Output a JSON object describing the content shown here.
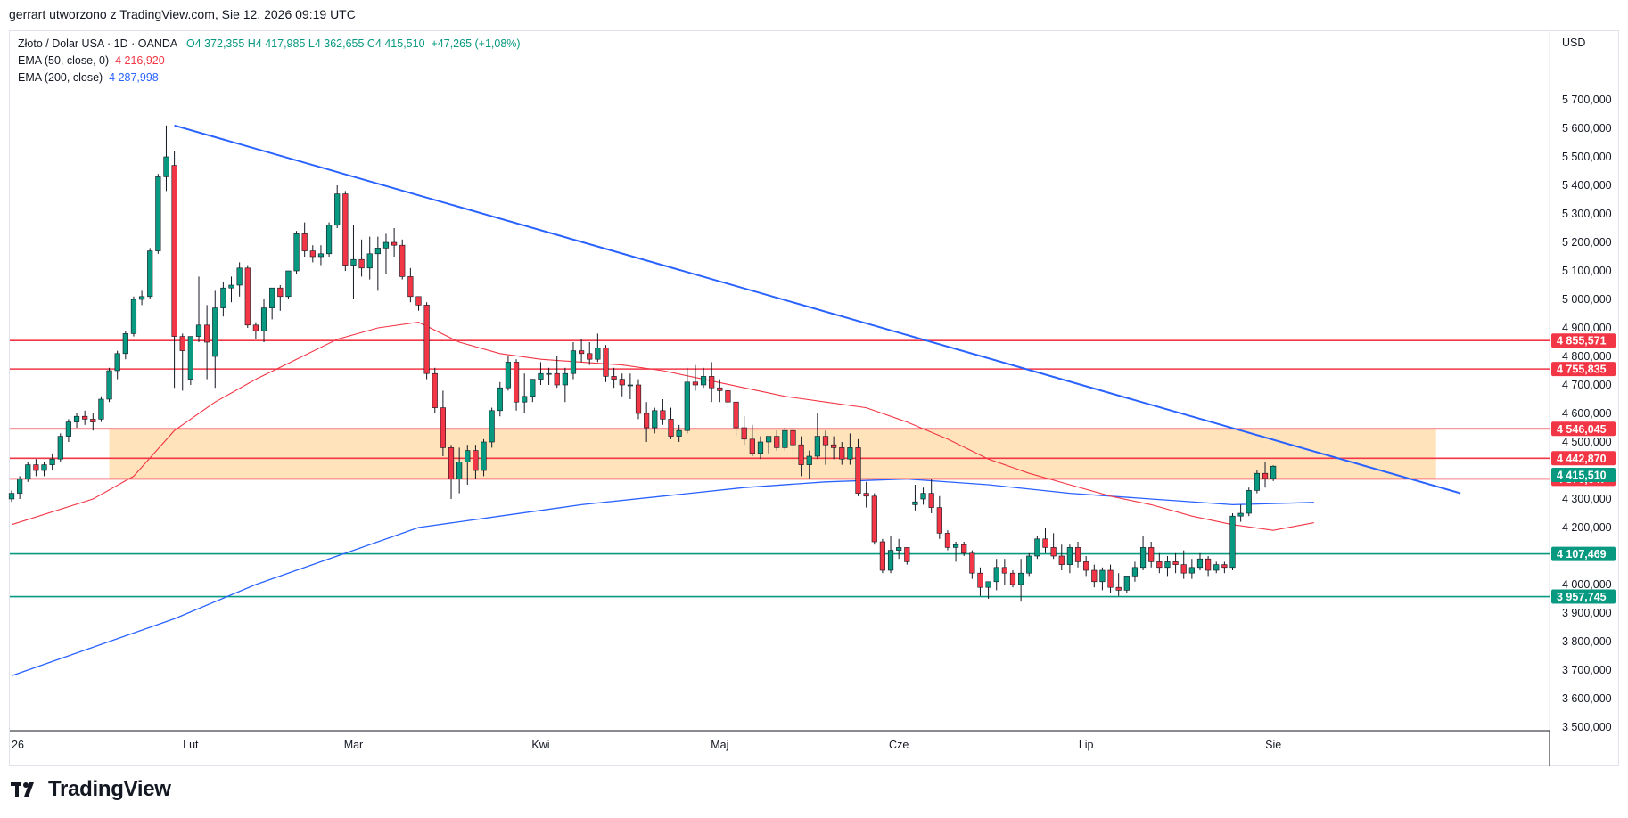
{
  "header": {
    "title": "gerrart utworzono z TradingView.com, Sie 12, 2026 09:19 UTC"
  },
  "legend": {
    "symbol": "Złoto / Dolar USA · 1D · OANDA",
    "ohlc": "O4 372,355  H4 417,985  L4 362,655  C4 415,510",
    "change": "+47,265 (+1,08%)",
    "ema50_label": "EMA (50, close, 0)",
    "ema50_value": "4 216,920",
    "ema200_label": "EMA (200, close)",
    "ema200_value": "4 287,998"
  },
  "footer": {
    "brand": "TradingView"
  },
  "colors": {
    "up": "#089981",
    "down": "#f23645",
    "ema50": "#f23645",
    "ema200": "#2962ff",
    "trendline": "#2962ff",
    "resistance": "#f23645",
    "support": "#089981",
    "zone": "#ffe0b2"
  },
  "chart_data": {
    "type": "candlestick",
    "currency": "USD",
    "ylim": [
      3500,
      5800
    ],
    "y_ticks": [
      {
        "v": 5700,
        "label": "5 700,000"
      },
      {
        "v": 5600,
        "label": "5 600,000"
      },
      {
        "v": 5500,
        "label": "5 500,000"
      },
      {
        "v": 5400,
        "label": "5 400,000"
      },
      {
        "v": 5300,
        "label": "5 300,000"
      },
      {
        "v": 5200,
        "label": "5 200,000"
      },
      {
        "v": 5100,
        "label": "5 100,000"
      },
      {
        "v": 5000,
        "label": "5 000,000"
      },
      {
        "v": 4900,
        "label": "4 900,000"
      },
      {
        "v": 4800,
        "label": "4 800,000"
      },
      {
        "v": 4700,
        "label": "4 700,000"
      },
      {
        "v": 4600,
        "label": "4 600,000"
      },
      {
        "v": 4500,
        "label": "4 500,000"
      },
      {
        "v": 4300,
        "label": "4 300,000"
      },
      {
        "v": 4200,
        "label": "4 200,000"
      },
      {
        "v": 4000,
        "label": "4 000,000"
      },
      {
        "v": 3900,
        "label": "3 900,000"
      },
      {
        "v": 3800,
        "label": "3 800,000"
      },
      {
        "v": 3700,
        "label": "3 700,000"
      },
      {
        "v": 3600,
        "label": "3 600,000"
      },
      {
        "v": 3500,
        "label": "3 500,000"
      }
    ],
    "x_ticks": [
      {
        "i": 0,
        "label": "26"
      },
      {
        "i": 22,
        "label": "Lut"
      },
      {
        "i": 42,
        "label": "Mar"
      },
      {
        "i": 65,
        "label": "Kwi"
      },
      {
        "i": 87,
        "label": "Maj"
      },
      {
        "i": 109,
        "label": "Cze"
      },
      {
        "i": 132,
        "label": "Lip"
      },
      {
        "i": 155,
        "label": "Sie"
      }
    ],
    "price_levels": [
      {
        "v": 4855.571,
        "label": "4 855,571",
        "kind": "resistance"
      },
      {
        "v": 4755.835,
        "label": "4 755,835",
        "kind": "resistance"
      },
      {
        "v": 4546.045,
        "label": "4 546,045",
        "kind": "resistance"
      },
      {
        "v": 4442.87,
        "label": "4 442,870",
        "kind": "resistance"
      },
      {
        "v": 4370.647,
        "label": "4 370,647",
        "kind": "resistance"
      },
      {
        "v": 4107.469,
        "label": "4 107,469",
        "kind": "support"
      },
      {
        "v": 3957.745,
        "label": "3 957,745",
        "kind": "support"
      }
    ],
    "last_price": {
      "v": 4415.51,
      "label": "4 415,510"
    },
    "zone": {
      "from_i": 12,
      "to_i": 175,
      "low": 4370.647,
      "high": 4546.045
    },
    "trendline": {
      "from": {
        "i": 20,
        "v": 5610
      },
      "to": {
        "i": 178,
        "v": 4320
      }
    },
    "candles": [
      [
        4300,
        4330,
        4290,
        4320
      ],
      [
        4320,
        4380,
        4300,
        4370
      ],
      [
        4370,
        4430,
        4360,
        4420
      ],
      [
        4420,
        4440,
        4380,
        4400
      ],
      [
        4400,
        4430,
        4380,
        4420
      ],
      [
        4420,
        4460,
        4400,
        4440
      ],
      [
        4440,
        4530,
        4430,
        4520
      ],
      [
        4520,
        4580,
        4500,
        4570
      ],
      [
        4570,
        4600,
        4550,
        4590
      ],
      [
        4590,
        4610,
        4560,
        4580
      ],
      [
        4580,
        4600,
        4540,
        4570
      ],
      [
        4580,
        4660,
        4570,
        4650
      ],
      [
        4650,
        4760,
        4640,
        4750
      ],
      [
        4750,
        4820,
        4720,
        4810
      ],
      [
        4810,
        4890,
        4790,
        4880
      ],
      [
        4880,
        5010,
        4870,
        5000
      ],
      [
        5000,
        5030,
        4980,
        5010
      ],
      [
        5010,
        5180,
        5000,
        5170
      ],
      [
        5170,
        5440,
        5160,
        5430
      ],
      [
        5430,
        5610,
        5380,
        5500
      ],
      [
        5470,
        5520,
        4690,
        4870
      ],
      [
        4870,
        4880,
        4680,
        4820
      ],
      [
        4720,
        4870,
        4700,
        4870
      ],
      [
        4870,
        5080,
        4850,
        4910
      ],
      [
        4910,
        4980,
        4720,
        4850
      ],
      [
        4800,
        5030,
        4690,
        4970
      ],
      [
        4970,
        5060,
        4940,
        5040
      ],
      [
        5040,
        5080,
        4990,
        5050
      ],
      [
        5050,
        5130,
        5010,
        5110
      ],
      [
        5110,
        5120,
        4900,
        4910
      ],
      [
        4910,
        4920,
        4860,
        4890
      ],
      [
        4890,
        5000,
        4850,
        4970
      ],
      [
        4970,
        5030,
        4930,
        5040
      ],
      [
        5040,
        5050,
        4960,
        5010
      ],
      [
        5010,
        5100,
        5000,
        5100
      ],
      [
        5100,
        5240,
        5090,
        5230
      ],
      [
        5230,
        5270,
        5150,
        5170
      ],
      [
        5170,
        5190,
        5130,
        5150
      ],
      [
        5150,
        5190,
        5120,
        5160
      ],
      [
        5160,
        5270,
        5150,
        5260
      ],
      [
        5260,
        5400,
        5250,
        5370
      ],
      [
        5370,
        5380,
        5100,
        5120
      ],
      [
        5120,
        5260,
        5000,
        5140
      ],
      [
        5140,
        5210,
        5080,
        5110
      ],
      [
        5110,
        5220,
        5070,
        5160
      ],
      [
        5160,
        5220,
        5030,
        5180
      ],
      [
        5180,
        5230,
        5090,
        5200
      ],
      [
        5200,
        5250,
        5150,
        5190
      ],
      [
        5190,
        5210,
        5070,
        5080
      ],
      [
        5080,
        5110,
        4990,
        5010
      ],
      [
        5010,
        5010,
        4960,
        4980
      ],
      [
        4980,
        4990,
        4720,
        4740
      ],
      [
        4740,
        4760,
        4600,
        4620
      ],
      [
        4620,
        4680,
        4450,
        4480
      ],
      [
        4480,
        4490,
        4300,
        4370
      ],
      [
        4370,
        4480,
        4320,
        4430
      ],
      [
        4430,
        4490,
        4350,
        4470
      ],
      [
        4470,
        4490,
        4370,
        4400
      ],
      [
        4400,
        4510,
        4380,
        4500
      ],
      [
        4500,
        4620,
        4480,
        4610
      ],
      [
        4610,
        4710,
        4590,
        4690
      ],
      [
        4690,
        4800,
        4680,
        4780
      ],
      [
        4780,
        4790,
        4610,
        4640
      ],
      [
        4640,
        4740,
        4600,
        4660
      ],
      [
        4660,
        4720,
        4640,
        4720
      ],
      [
        4720,
        4780,
        4700,
        4740
      ],
      [
        4740,
        4760,
        4700,
        4740
      ],
      [
        4740,
        4800,
        4690,
        4700
      ],
      [
        4700,
        4760,
        4640,
        4740
      ],
      [
        4740,
        4850,
        4720,
        4820
      ],
      [
        4820,
        4860,
        4780,
        4810
      ],
      [
        4810,
        4850,
        4770,
        4790
      ],
      [
        4790,
        4880,
        4780,
        4830
      ],
      [
        4830,
        4840,
        4710,
        4730
      ],
      [
        4730,
        4760,
        4690,
        4720
      ],
      [
        4720,
        4740,
        4660,
        4700
      ],
      [
        4700,
        4740,
        4650,
        4700
      ],
      [
        4700,
        4720,
        4580,
        4600
      ],
      [
        4600,
        4640,
        4500,
        4550
      ],
      [
        4550,
        4620,
        4530,
        4610
      ],
      [
        4610,
        4650,
        4560,
        4580
      ],
      [
        4580,
        4620,
        4510,
        4520
      ],
      [
        4520,
        4560,
        4500,
        4540
      ],
      [
        4540,
        4760,
        4530,
        4710
      ],
      [
        4710,
        4770,
        4680,
        4700
      ],
      [
        4700,
        4760,
        4690,
        4730
      ],
      [
        4730,
        4780,
        4640,
        4690
      ],
      [
        4690,
        4720,
        4640,
        4680
      ],
      [
        4680,
        4690,
        4620,
        4640
      ],
      [
        4640,
        4640,
        4520,
        4550
      ],
      [
        4550,
        4590,
        4490,
        4510
      ],
      [
        4510,
        4560,
        4450,
        4460
      ],
      [
        4460,
        4520,
        4440,
        4500
      ],
      [
        4500,
        4520,
        4460,
        4520
      ],
      [
        4520,
        4540,
        4470,
        4480
      ],
      [
        4480,
        4550,
        4470,
        4540
      ],
      [
        4540,
        4550,
        4470,
        4490
      ],
      [
        4490,
        4520,
        4380,
        4420
      ],
      [
        4420,
        4470,
        4370,
        4450
      ],
      [
        4450,
        4600,
        4440,
        4520
      ],
      [
        4520,
        4540,
        4420,
        4490
      ],
      [
        4490,
        4520,
        4440,
        4480
      ],
      [
        4480,
        4500,
        4420,
        4440
      ],
      [
        4440,
        4530,
        4420,
        4480
      ],
      [
        4480,
        4510,
        4310,
        4320
      ],
      [
        4320,
        4360,
        4270,
        4310
      ],
      [
        4310,
        4320,
        4140,
        4150
      ],
      [
        4150,
        4160,
        4040,
        4050
      ],
      [
        4050,
        4170,
        4040,
        4120
      ],
      [
        4120,
        4160,
        4090,
        4130
      ],
      [
        4130,
        4130,
        4070,
        4080
      ],
      [
        4280,
        4350,
        4260,
        4290
      ],
      [
        4300,
        4340,
        4280,
        4320
      ],
      [
        4320,
        4370,
        4250,
        4270
      ],
      [
        4270,
        4310,
        4160,
        4180
      ],
      [
        4180,
        4190,
        4120,
        4130
      ],
      [
        4130,
        4150,
        4080,
        4140
      ],
      [
        4140,
        4150,
        4100,
        4110
      ],
      [
        4110,
        4120,
        4020,
        4040
      ],
      [
        4040,
        4060,
        3960,
        3990
      ],
      [
        3990,
        4010,
        3950,
        4010
      ],
      [
        4010,
        4090,
        3980,
        4060
      ],
      [
        4060,
        4090,
        4000,
        4040
      ],
      [
        4040,
        4050,
        3990,
        4000
      ],
      [
        4000,
        4090,
        3940,
        4040
      ],
      [
        4040,
        4110,
        4030,
        4100
      ],
      [
        4100,
        4170,
        4090,
        4160
      ],
      [
        4160,
        4200,
        4110,
        4130
      ],
      [
        4130,
        4180,
        4090,
        4100
      ],
      [
        4100,
        4140,
        4050,
        4070
      ],
      [
        4070,
        4140,
        4040,
        4130
      ],
      [
        4130,
        4150,
        4060,
        4080
      ],
      [
        4080,
        4100,
        4030,
        4050
      ],
      [
        4050,
        4070,
        3990,
        4010
      ],
      [
        4010,
        4060,
        3980,
        4050
      ],
      [
        4050,
        4070,
        3970,
        3990
      ],
      [
        3990,
        4040,
        3960,
        3980
      ],
      [
        3980,
        4030,
        3970,
        4030
      ],
      [
        4030,
        4080,
        4010,
        4060
      ],
      [
        4060,
        4170,
        4050,
        4130
      ],
      [
        4130,
        4150,
        4060,
        4080
      ],
      [
        4080,
        4110,
        4040,
        4060
      ],
      [
        4060,
        4100,
        4030,
        4080
      ],
      [
        4080,
        4110,
        4040,
        4070
      ],
      [
        4070,
        4120,
        4020,
        4040
      ],
      [
        4040,
        4090,
        4020,
        4060
      ],
      [
        4060,
        4110,
        4050,
        4090
      ],
      [
        4090,
        4100,
        4030,
        4050
      ],
      [
        4050,
        4080,
        4040,
        4070
      ],
      [
        4070,
        4080,
        4040,
        4060
      ],
      [
        4060,
        4250,
        4050,
        4240
      ],
      [
        4240,
        4280,
        4220,
        4250
      ],
      [
        4250,
        4340,
        4240,
        4330
      ],
      [
        4330,
        4400,
        4320,
        4390
      ],
      [
        4390,
        4430,
        4340,
        4372
      ],
      [
        4372,
        4418,
        4363,
        4415
      ]
    ],
    "ema50": [
      {
        "i": 0,
        "v": 4210
      },
      {
        "i": 10,
        "v": 4300
      },
      {
        "i": 15,
        "v": 4380
      },
      {
        "i": 20,
        "v": 4540
      },
      {
        "i": 25,
        "v": 4640
      },
      {
        "i": 30,
        "v": 4720
      },
      {
        "i": 35,
        "v": 4790
      },
      {
        "i": 40,
        "v": 4860
      },
      {
        "i": 45,
        "v": 4900
      },
      {
        "i": 50,
        "v": 4920
      },
      {
        "i": 55,
        "v": 4850
      },
      {
        "i": 60,
        "v": 4810
      },
      {
        "i": 65,
        "v": 4790
      },
      {
        "i": 70,
        "v": 4780
      },
      {
        "i": 75,
        "v": 4770
      },
      {
        "i": 80,
        "v": 4750
      },
      {
        "i": 85,
        "v": 4720
      },
      {
        "i": 90,
        "v": 4690
      },
      {
        "i": 95,
        "v": 4660
      },
      {
        "i": 100,
        "v": 4640
      },
      {
        "i": 105,
        "v": 4620
      },
      {
        "i": 110,
        "v": 4570
      },
      {
        "i": 115,
        "v": 4510
      },
      {
        "i": 120,
        "v": 4440
      },
      {
        "i": 125,
        "v": 4390
      },
      {
        "i": 130,
        "v": 4350
      },
      {
        "i": 135,
        "v": 4310
      },
      {
        "i": 140,
        "v": 4280
      },
      {
        "i": 145,
        "v": 4240
      },
      {
        "i": 150,
        "v": 4210
      },
      {
        "i": 155,
        "v": 4190
      },
      {
        "i": 160,
        "v": 4217
      }
    ],
    "ema200": [
      {
        "i": 0,
        "v": 3680
      },
      {
        "i": 10,
        "v": 3780
      },
      {
        "i": 20,
        "v": 3880
      },
      {
        "i": 30,
        "v": 4000
      },
      {
        "i": 40,
        "v": 4100
      },
      {
        "i": 50,
        "v": 4200
      },
      {
        "i": 60,
        "v": 4240
      },
      {
        "i": 70,
        "v": 4280
      },
      {
        "i": 80,
        "v": 4310
      },
      {
        "i": 90,
        "v": 4340
      },
      {
        "i": 100,
        "v": 4360
      },
      {
        "i": 110,
        "v": 4370
      },
      {
        "i": 120,
        "v": 4350
      },
      {
        "i": 130,
        "v": 4320
      },
      {
        "i": 140,
        "v": 4300
      },
      {
        "i": 150,
        "v": 4280
      },
      {
        "i": 160,
        "v": 4288
      }
    ]
  }
}
